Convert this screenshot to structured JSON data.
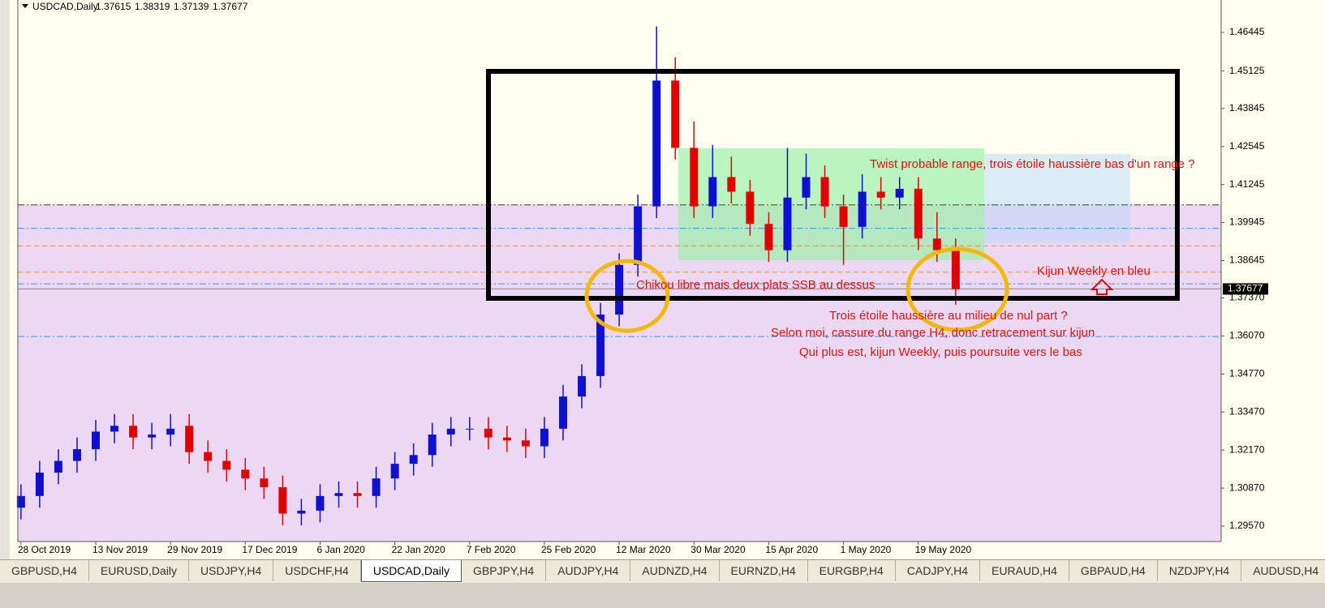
{
  "chart_data": {
    "type": "candlestick",
    "title": "USDCAD,Daily",
    "header_values": [
      1.37615,
      1.38319,
      1.37139,
      1.37677
    ],
    "current_price": 1.37677,
    "bull_color": "#1010d0",
    "bear_color": "#e00000",
    "xlim": [
      -0.5,
      192.6
    ],
    "xticks": [
      {
        "value": 0,
        "label": "28 Oct 2019"
      },
      {
        "value": 12,
        "label": "13 Nov 2019"
      },
      {
        "value": 24,
        "label": "29 Nov 2019"
      },
      {
        "value": 36,
        "label": "17 Dec 2019"
      },
      {
        "value": 48,
        "label": "6 Jan 2020"
      },
      {
        "value": 60,
        "label": "22 Jan 2020"
      },
      {
        "value": 72,
        "label": "7 Feb 2020"
      },
      {
        "value": 84,
        "label": "25 Feb 2020"
      },
      {
        "value": 96,
        "label": "12 Mar 2020"
      },
      {
        "value": 108,
        "label": "30 Mar 2020"
      },
      {
        "value": 120,
        "label": "15 Apr 2020"
      },
      {
        "value": 132,
        "label": "1 May 2020"
      },
      {
        "value": 144,
        "label": "19 May 2020"
      }
    ],
    "ylim": [
      1.29044,
      1.47553
    ],
    "yticks": [
      1.46445,
      1.45125,
      1.43845,
      1.42545,
      1.41245,
      1.39945,
      1.38645,
      {
        "value": 1.3737,
        "label": "1.37370"
      },
      {
        "value": 1.3607,
        "label": "1.36070"
      },
      {
        "value": 1.3477,
        "label": "1.34770"
      },
      {
        "value": 1.3347,
        "label": "1.33470"
      },
      {
        "value": 1.3217,
        "label": "1.32170"
      },
      {
        "value": 1.3087,
        "label": "1.30870"
      },
      {
        "value": 1.2957,
        "label": "1.29570"
      }
    ],
    "x": [
      0,
      3,
      6,
      9,
      12,
      15,
      18,
      21,
      24,
      27,
      30,
      33,
      36,
      39,
      42,
      45,
      48,
      51,
      54,
      57,
      60,
      63,
      66,
      69,
      72,
      75,
      78,
      81,
      84,
      87,
      90,
      93,
      96,
      99,
      102,
      105,
      108,
      111,
      114,
      117,
      120,
      123,
      126,
      129,
      132,
      135,
      138,
      141,
      144,
      147,
      150
    ],
    "open": [
      1.302,
      1.306,
      1.314,
      1.318,
      1.322,
      1.328,
      1.33,
      1.326,
      1.327,
      1.33,
      1.321,
      1.318,
      1.315,
      1.312,
      1.309,
      1.3,
      1.301,
      1.306,
      1.307,
      1.306,
      1.312,
      1.317,
      1.32,
      1.327,
      1.329,
      1.329,
      1.326,
      1.325,
      1.323,
      1.329,
      1.34,
      1.347,
      1.368,
      1.385,
      1.405,
      1.448,
      1.425,
      1.405,
      1.415,
      1.41,
      1.399,
      1.39,
      1.408,
      1.415,
      1.405,
      1.398,
      1.41,
      1.408,
      1.411,
      1.394,
      1.39
    ],
    "high": [
      1.31,
      1.318,
      1.322,
      1.326,
      1.332,
      1.334,
      1.334,
      1.331,
      1.334,
      1.334,
      1.325,
      1.322,
      1.319,
      1.316,
      1.313,
      1.305,
      1.31,
      1.311,
      1.311,
      1.316,
      1.321,
      1.324,
      1.331,
      1.333,
      1.333,
      1.333,
      1.33,
      1.329,
      1.333,
      1.344,
      1.351,
      1.372,
      1.389,
      1.409,
      1.4665,
      1.456,
      1.434,
      1.426,
      1.422,
      1.414,
      1.403,
      1.425,
      1.423,
      1.419,
      1.409,
      1.416,
      1.415,
      1.415,
      1.415,
      1.403,
      1.394
    ],
    "low": [
      1.298,
      1.302,
      1.31,
      1.314,
      1.318,
      1.324,
      1.322,
      1.322,
      1.323,
      1.317,
      1.314,
      1.311,
      1.308,
      1.305,
      1.296,
      1.296,
      1.297,
      1.302,
      1.302,
      1.302,
      1.308,
      1.313,
      1.316,
      1.323,
      1.325,
      1.322,
      1.321,
      1.319,
      1.319,
      1.325,
      1.336,
      1.343,
      1.364,
      1.381,
      1.401,
      1.421,
      1.401,
      1.401,
      1.406,
      1.395,
      1.386,
      1.386,
      1.404,
      1.401,
      1.385,
      1.394,
      1.404,
      1.404,
      1.39,
      1.386,
      1.3714
    ],
    "close": [
      1.306,
      1.314,
      1.318,
      1.322,
      1.328,
      1.33,
      1.326,
      1.327,
      1.329,
      1.321,
      1.318,
      1.315,
      1.312,
      1.309,
      1.3,
      1.301,
      1.306,
      1.307,
      1.306,
      1.312,
      1.317,
      1.32,
      1.327,
      1.329,
      1.329,
      1.326,
      1.325,
      1.323,
      1.329,
      1.34,
      1.347,
      1.368,
      1.385,
      1.405,
      1.448,
      1.425,
      1.405,
      1.415,
      1.41,
      1.399,
      1.39,
      1.408,
      1.415,
      1.405,
      1.398,
      1.41,
      1.408,
      1.411,
      1.394,
      1.39,
      1.3767
    ],
    "levels": [
      {
        "value": 1.4055,
        "color": "#444444",
        "style": "dash-dot"
      },
      {
        "value": 1.3975,
        "color": "#3399ff",
        "style": "dash-dot"
      },
      {
        "value": 1.3915,
        "color": "#ff8c1a",
        "style": "dash"
      },
      {
        "value": 1.3825,
        "color": "#ff8c1a",
        "style": "dash"
      },
      {
        "value": 1.3785,
        "color": "#3399ff",
        "style": "dash-dot"
      },
      {
        "value": 1.37677,
        "color": "#888888",
        "style": "solid"
      },
      {
        "value": 1.3605,
        "color": "#3399ff",
        "style": "dash-dot"
      }
    ],
    "annotations": [
      "Twist probable range, trois étoile haussière bas d'un range ?",
      "Kijun Weekly en bleu",
      "Chikou libre mais deux plats SSB au dessus",
      "Trois étoile haussière au milieu de nul part ?",
      "Selon moi, cassure du range H4, donc retracement sur kijun",
      "Qui plus est, kijun Weekly, puis poursuite vers le bas"
    ]
  },
  "tabs": [
    "GBPUSD,H4",
    "EURUSD,Daily",
    "USDJPY,H4",
    "USDCHF,H4",
    "USDCAD,Daily",
    "GBPJPY,H4",
    "AUDJPY,H4",
    "AUDNZD,H4",
    "EURNZD,H4",
    "EURGBP,H4",
    "CADJPY,H4",
    "EURAUD,H4",
    "GBPAUD,H4",
    "NZDJPY,H4",
    "AUDUSD,H4"
  ],
  "active_tab": 4
}
